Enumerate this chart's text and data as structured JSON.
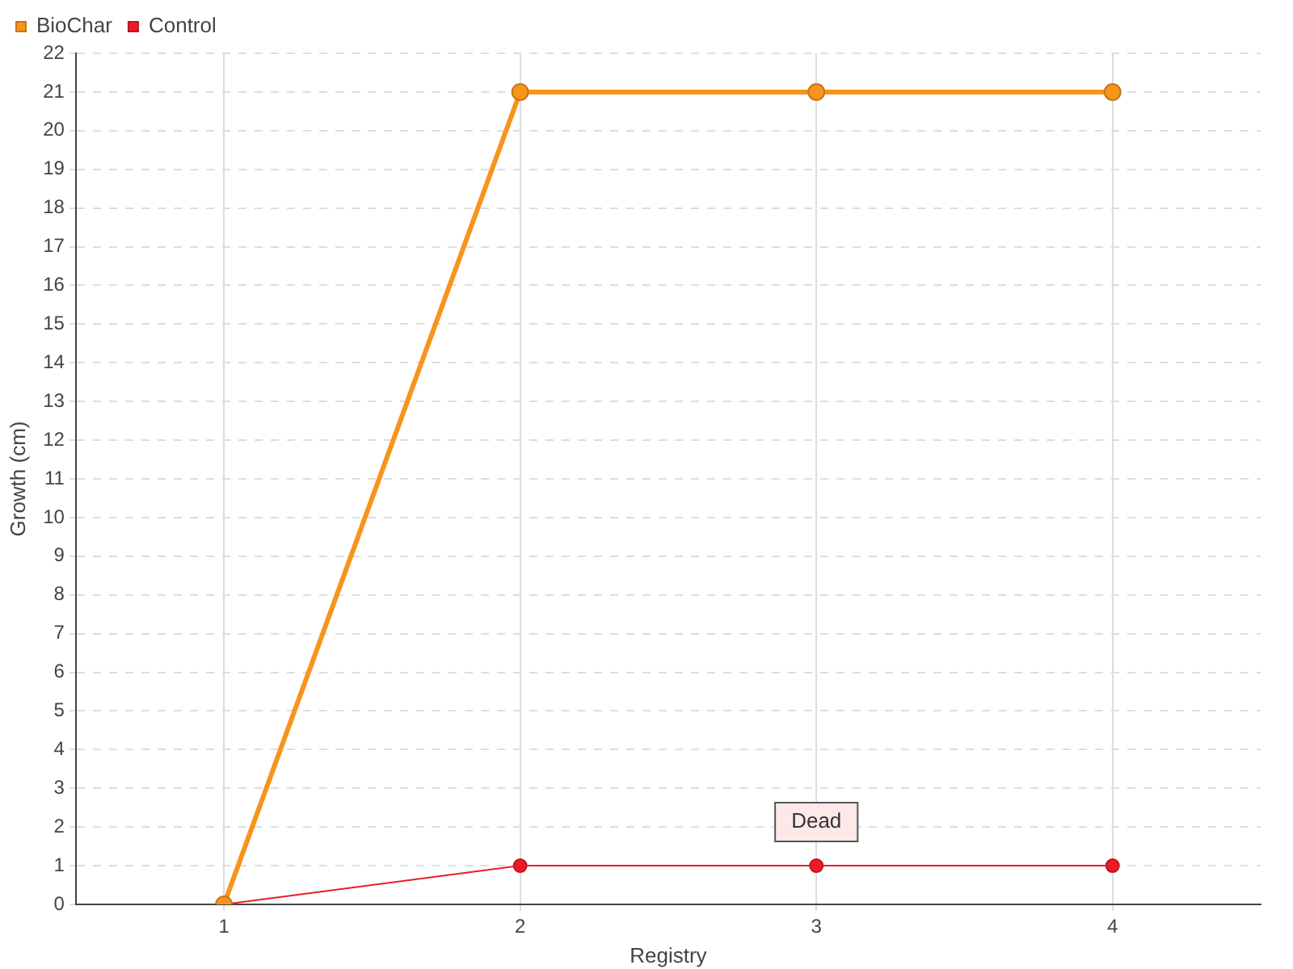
{
  "chart_data": {
    "type": "line",
    "xlabel": "Registry",
    "ylabel": "Growth (cm)",
    "categories": [
      "1",
      "2",
      "3",
      "4"
    ],
    "series": [
      {
        "name": "BioChar",
        "color": "#f7941d",
        "values": [
          0,
          21,
          21,
          21
        ]
      },
      {
        "name": "Control",
        "color": "#ed1c24",
        "values": [
          0,
          1,
          1,
          1
        ]
      }
    ],
    "ylim": [
      0,
      22
    ],
    "yticks": [
      0,
      1,
      2,
      3,
      4,
      5,
      6,
      7,
      8,
      9,
      10,
      11,
      12,
      13,
      14,
      15,
      16,
      17,
      18,
      19,
      20,
      21,
      22
    ],
    "grid": true,
    "legend": "top left",
    "marker": "circle",
    "line_style": "solid",
    "annotations": [
      {
        "text": "Dead",
        "x": "3",
        "y": 1
      }
    ]
  }
}
